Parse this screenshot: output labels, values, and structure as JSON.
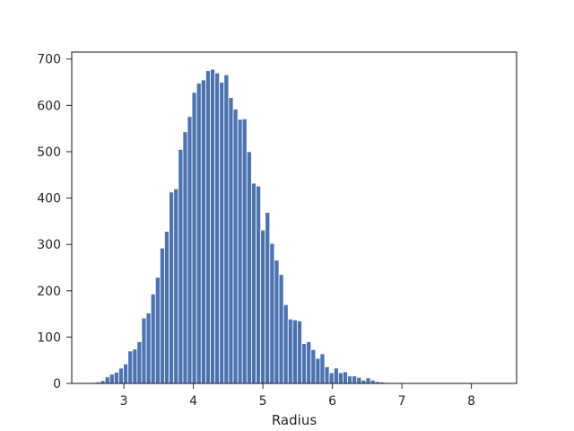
{
  "chart_data": {
    "type": "bar",
    "title": "",
    "xlabel": "Radius",
    "ylabel": "",
    "xlim": [
      2.25,
      8.65
    ],
    "ylim": [
      0,
      715
    ],
    "xticks": [
      3,
      4,
      5,
      6,
      7,
      8
    ],
    "yticks": [
      0,
      100,
      200,
      300,
      400,
      500,
      600,
      700
    ],
    "grid": false,
    "bar_color": "#4c72b0",
    "bin_width": 0.0658,
    "x": [
      2.565,
      2.631,
      2.697,
      2.763,
      2.828,
      2.894,
      2.96,
      3.026,
      3.092,
      3.158,
      3.223,
      3.289,
      3.355,
      3.421,
      3.487,
      3.553,
      3.618,
      3.684,
      3.75,
      3.816,
      3.882,
      3.947,
      4.013,
      4.079,
      4.145,
      4.211,
      4.277,
      4.342,
      4.408,
      4.474,
      4.54,
      4.606,
      4.672,
      4.737,
      4.803,
      4.869,
      4.935,
      5.001,
      5.066,
      5.132,
      5.198,
      5.264,
      5.33,
      5.396,
      5.461,
      5.527,
      5.593,
      5.659,
      5.725,
      5.791,
      5.856,
      5.922,
      5.988,
      6.054,
      6.12,
      6.185,
      6.251,
      6.317,
      6.383,
      6.449,
      6.515,
      6.58,
      6.646,
      6.712,
      6.778,
      6.844,
      6.91,
      6.975,
      7.041,
      7.107,
      7.173,
      7.239,
      7.304,
      7.37,
      7.436,
      7.502,
      7.568,
      7.634,
      7.699,
      7.765,
      7.831,
      7.897,
      7.963,
      8.029,
      8.094,
      8.16,
      8.226,
      8.292
    ],
    "values": [
      2,
      3,
      6,
      14,
      20,
      24,
      33,
      42,
      70,
      74,
      90,
      141,
      152,
      193,
      229,
      292,
      328,
      413,
      420,
      505,
      543,
      576,
      628,
      648,
      655,
      675,
      678,
      670,
      650,
      666,
      617,
      592,
      570,
      571,
      500,
      432,
      426,
      331,
      369,
      302,
      266,
      235,
      170,
      139,
      137,
      135,
      86,
      90,
      73,
      54,
      64,
      36,
      23,
      33,
      23,
      25,
      16,
      16,
      13,
      7,
      12,
      7,
      4,
      3,
      2,
      1,
      1,
      1,
      1,
      0,
      0,
      0,
      0,
      0,
      0,
      0,
      0,
      0,
      0,
      0,
      0,
      0,
      0,
      0,
      0,
      0,
      0,
      1
    ]
  }
}
